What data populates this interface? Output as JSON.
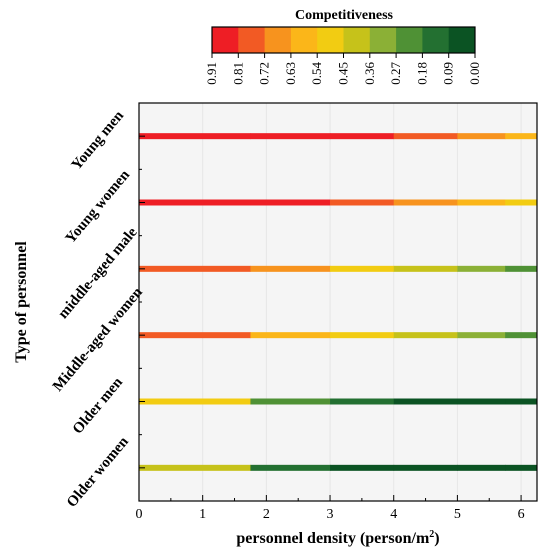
{
  "chart_data": {
    "type": "heatmap",
    "colorbar": {
      "title": "Competitiveness",
      "tick_labels": [
        "0.91",
        "0.81",
        "0.72",
        "0.63",
        "0.54",
        "0.45",
        "0.36",
        "0.27",
        "0.18",
        "0.09",
        "0.00"
      ],
      "range": [
        0.91,
        0.0
      ],
      "colors_high_to_low": [
        "#ee1e25",
        "#f25a24",
        "#f7931e",
        "#fbb619",
        "#f2cc12",
        "#c6c21a",
        "#8bb036",
        "#4f9135",
        "#237031",
        "#0b5323"
      ]
    },
    "xlabel": "personnel density (person/m",
    "xlabel_superscript": "2",
    "xlabel_suffix": ")",
    "ylabel": "Type of personnel",
    "xlim": [
      0,
      6.25
    ],
    "x_ticks": [
      "0",
      "1",
      "2",
      "3",
      "4",
      "5",
      "6"
    ],
    "categories": [
      "Young men",
      "Young women",
      "middle-aged male",
      "Middle-aged women",
      "Older men",
      "Older women"
    ],
    "series": [
      {
        "name": "Young men",
        "segments": [
          {
            "x0": 0,
            "x1": 1.75,
            "value": 0.91
          },
          {
            "x0": 1.75,
            "x1": 3.0,
            "value": 0.88
          },
          {
            "x0": 3.0,
            "x1": 4.0,
            "value": 0.84
          },
          {
            "x0": 4.0,
            "x1": 5.0,
            "value": 0.81
          },
          {
            "x0": 5.0,
            "x1": 5.75,
            "value": 0.72
          },
          {
            "x0": 5.75,
            "x1": 6.25,
            "value": 0.63
          }
        ]
      },
      {
        "name": "Young women",
        "segments": [
          {
            "x0": 0,
            "x1": 1.75,
            "value": 0.91
          },
          {
            "x0": 1.75,
            "x1": 3.0,
            "value": 0.84
          },
          {
            "x0": 3.0,
            "x1": 4.0,
            "value": 0.78
          },
          {
            "x0": 4.0,
            "x1": 5.0,
            "value": 0.7
          },
          {
            "x0": 5.0,
            "x1": 5.75,
            "value": 0.61
          },
          {
            "x0": 5.75,
            "x1": 6.25,
            "value": 0.5
          }
        ]
      },
      {
        "name": "middle-aged male",
        "segments": [
          {
            "x0": 0,
            "x1": 1.75,
            "value": 0.81
          },
          {
            "x0": 1.75,
            "x1": 3.0,
            "value": 0.66
          },
          {
            "x0": 3.0,
            "x1": 4.0,
            "value": 0.54
          },
          {
            "x0": 4.0,
            "x1": 5.0,
            "value": 0.45
          },
          {
            "x0": 5.0,
            "x1": 5.75,
            "value": 0.36
          },
          {
            "x0": 5.75,
            "x1": 6.25,
            "value": 0.27
          }
        ]
      },
      {
        "name": "Middle-aged women",
        "segments": [
          {
            "x0": 0,
            "x1": 1.75,
            "value": 0.75
          },
          {
            "x0": 1.75,
            "x1": 3.0,
            "value": 0.58
          },
          {
            "x0": 3.0,
            "x1": 4.0,
            "value": 0.48
          },
          {
            "x0": 4.0,
            "x1": 5.0,
            "value": 0.4
          },
          {
            "x0": 5.0,
            "x1": 5.75,
            "value": 0.32
          },
          {
            "x0": 5.75,
            "x1": 6.25,
            "value": 0.24
          }
        ]
      },
      {
        "name": "Older men",
        "segments": [
          {
            "x0": 0,
            "x1": 1.75,
            "value": 0.5
          },
          {
            "x0": 1.75,
            "x1": 3.0,
            "value": 0.22
          },
          {
            "x0": 3.0,
            "x1": 4.0,
            "value": 0.13
          },
          {
            "x0": 4.0,
            "x1": 5.0,
            "value": 0.06
          },
          {
            "x0": 5.0,
            "x1": 5.75,
            "value": 0.03
          },
          {
            "x0": 5.75,
            "x1": 6.25,
            "value": 0.01
          }
        ]
      },
      {
        "name": "Older women",
        "segments": [
          {
            "x0": 0,
            "x1": 1.75,
            "value": 0.38
          },
          {
            "x0": 1.75,
            "x1": 3.0,
            "value": 0.18
          },
          {
            "x0": 3.0,
            "x1": 4.0,
            "value": 0.06
          },
          {
            "x0": 4.0,
            "x1": 5.0,
            "value": 0.02
          },
          {
            "x0": 5.0,
            "x1": 5.75,
            "value": 0.01
          },
          {
            "x0": 5.75,
            "x1": 6.25,
            "value": 0.0
          }
        ]
      }
    ],
    "grid": true,
    "legend": "top"
  }
}
